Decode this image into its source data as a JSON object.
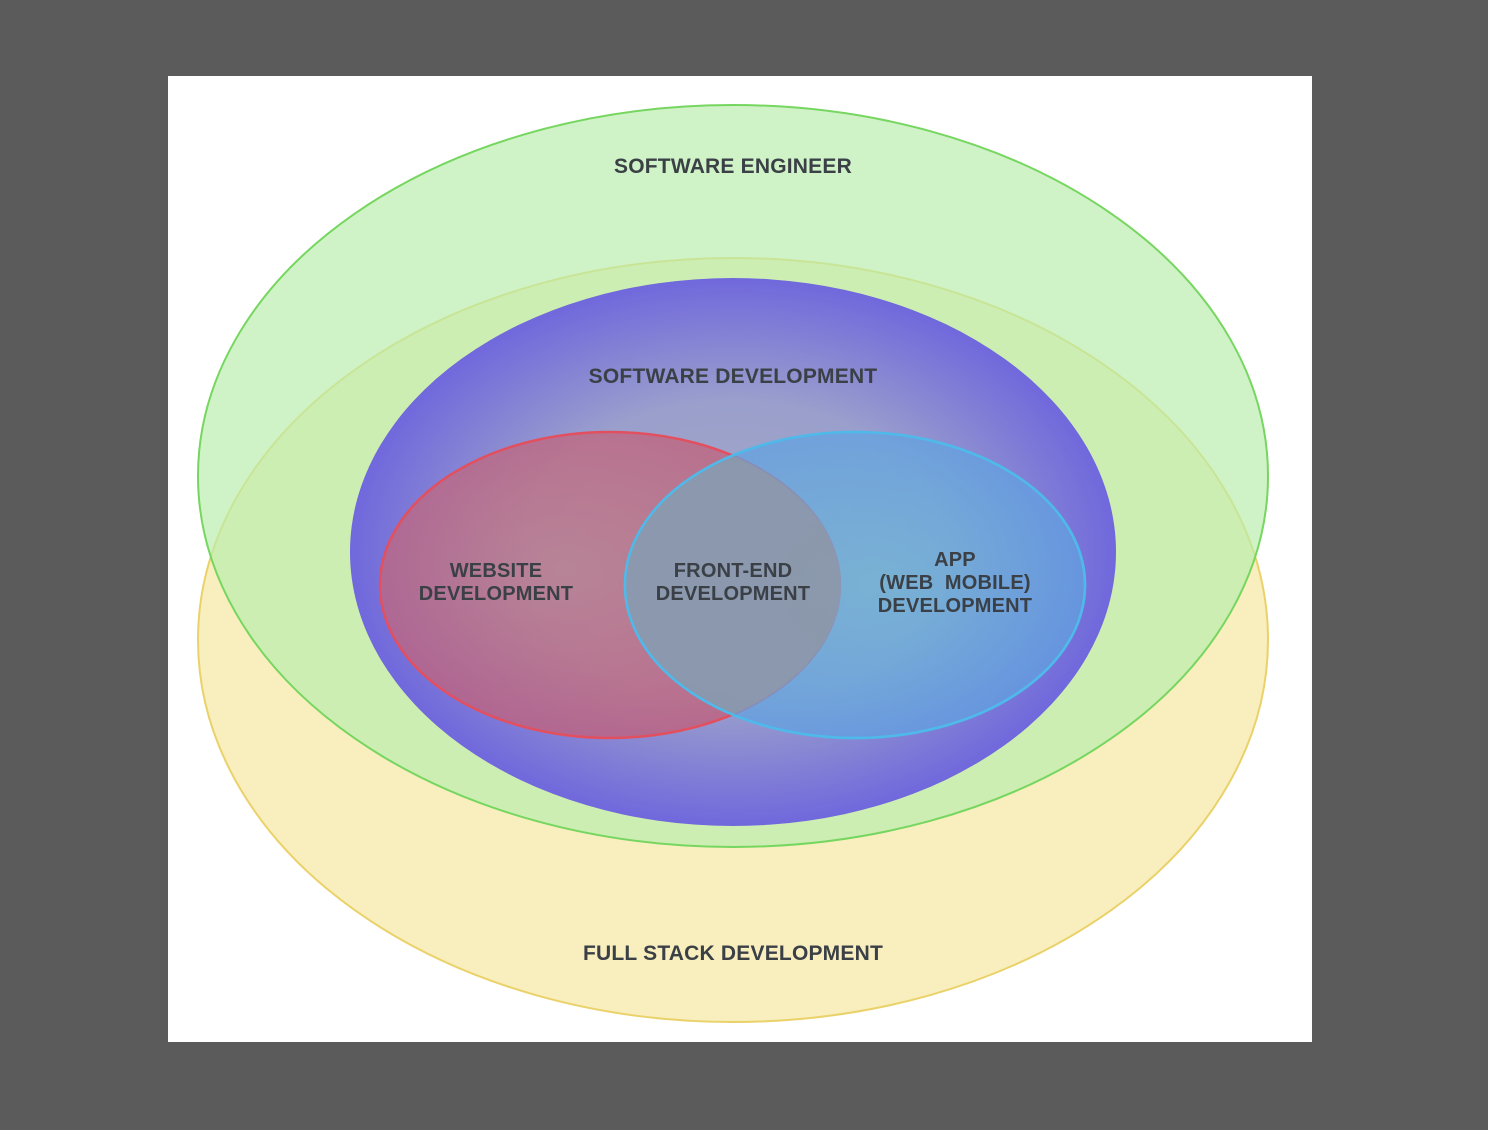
{
  "diagram": {
    "sets": {
      "software_engineer": {
        "label": "SOFTWARE ENGINEER",
        "color": "#7ed86a"
      },
      "full_stack": {
        "label": "FULL STACK DEVELOPMENT",
        "color": "#f0d36a"
      },
      "software_development": {
        "label": "SOFTWARE DEVELOPMENT",
        "color": "#6f6ae0"
      },
      "website_development": {
        "lines": [
          "WEBSITE",
          "DEVELOPMENT"
        ],
        "color": "#e05560"
      },
      "app_development": {
        "lines": [
          "APP",
          "(WEB  MOBILE)",
          "DEVELOPMENT"
        ],
        "color": "#55b8e8"
      },
      "front_end": {
        "lines": [
          "FRONT-END",
          "DEVELOPMENT"
        ]
      }
    }
  }
}
